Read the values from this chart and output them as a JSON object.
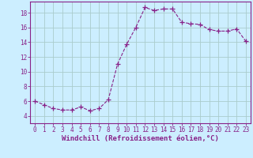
{
  "x": [
    0,
    1,
    2,
    3,
    4,
    5,
    6,
    7,
    8,
    9,
    10,
    11,
    12,
    13,
    14,
    15,
    16,
    17,
    18,
    19,
    20,
    21,
    22,
    23
  ],
  "y": [
    6.0,
    5.5,
    5.0,
    4.8,
    4.8,
    5.2,
    4.7,
    5.0,
    6.2,
    11.0,
    13.7,
    16.0,
    18.7,
    18.3,
    18.5,
    18.5,
    16.7,
    16.5,
    16.4,
    15.7,
    15.5,
    15.5,
    15.8,
    14.1
  ],
  "line_color": "#882288",
  "marker": "+",
  "marker_size": 4,
  "marker_color": "#882288",
  "bg_color": "#cceeff",
  "grid_color": "#aacccc",
  "xlabel": "Windchill (Refroidissement éolien,°C)",
  "xlabel_color": "#882288",
  "tick_color": "#882288",
  "ylim": [
    3,
    19.5
  ],
  "xlim": [
    -0.5,
    23.5
  ],
  "yticks": [
    4,
    6,
    8,
    10,
    12,
    14,
    16,
    18
  ],
  "xticks": [
    0,
    1,
    2,
    3,
    4,
    5,
    6,
    7,
    8,
    9,
    10,
    11,
    12,
    13,
    14,
    15,
    16,
    17,
    18,
    19,
    20,
    21,
    22,
    23
  ],
  "xtick_labels": [
    "0",
    "1",
    "2",
    "3",
    "4",
    "5",
    "6",
    "7",
    "8",
    "9",
    "10",
    "11",
    "12",
    "13",
    "14",
    "15",
    "16",
    "17",
    "18",
    "19",
    "20",
    "21",
    "22",
    "23"
  ],
  "font_size": 5.5,
  "xlabel_font_size": 6.5
}
